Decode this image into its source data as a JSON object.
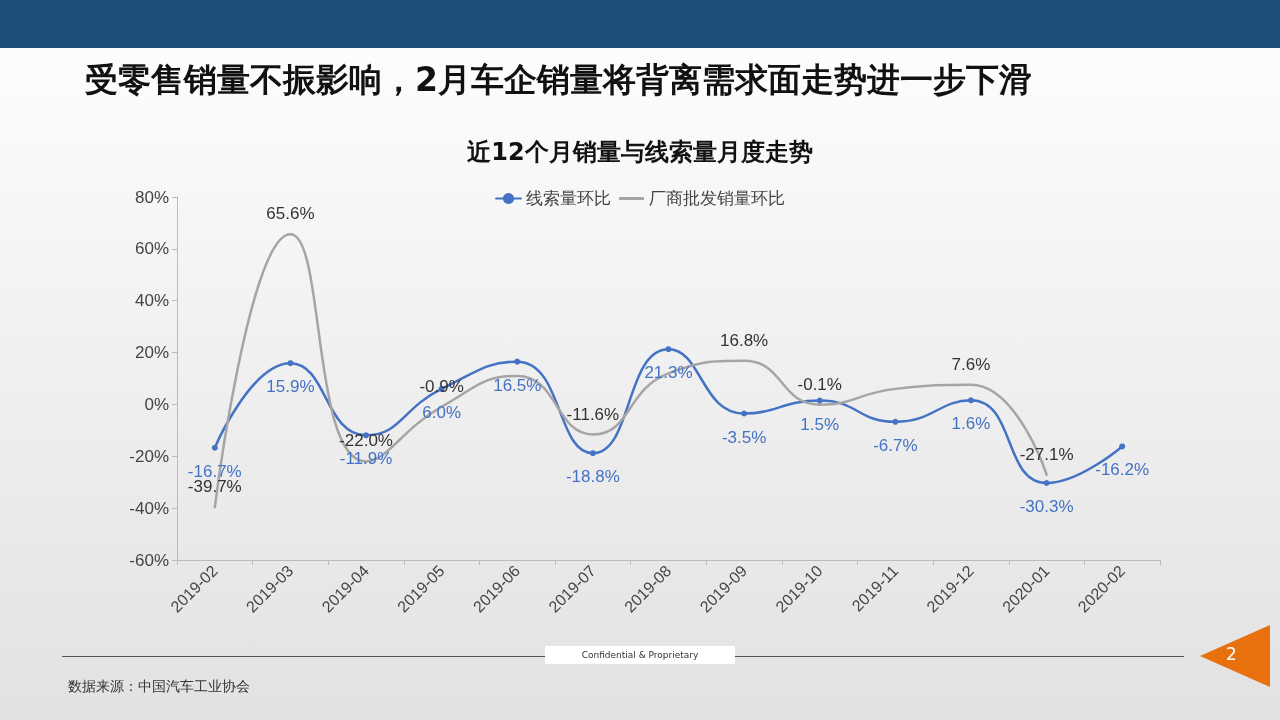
{
  "chart_data": {
    "type": "line",
    "title": "受零售销量不振影响，2月车企销量将背离需求面走势进一步下滑",
    "subtitle": "近12个月销量与线索量月度走势",
    "categories": [
      "2019-02",
      "2019-03",
      "2019-04",
      "2019-05",
      "2019-06",
      "2019-07",
      "2019-08",
      "2019-09",
      "2019-10",
      "2019-11",
      "2019-12",
      "2020-01",
      "2020-02"
    ],
    "series": [
      {
        "name": "线索量环比",
        "color": "#4472c4",
        "marker": "circle",
        "values": [
          -16.7,
          15.9,
          -11.9,
          6.0,
          16.5,
          -18.8,
          21.3,
          -3.5,
          1.5,
          -6.7,
          1.6,
          -30.3,
          -16.2
        ],
        "value_labels": [
          "-16.7%",
          "15.9%",
          "-11.9%",
          "6.0%",
          "16.5%",
          "-18.8%",
          "21.3%",
          "-3.5%",
          "1.5%",
          "-6.7%",
          "1.6%",
          "-30.3%",
          "-16.2%"
        ]
      },
      {
        "name": "厂商批发销量环比",
        "color": "#a5a5a5",
        "marker": "none",
        "values": [
          -39.7,
          65.6,
          -22.0,
          -0.9,
          11,
          -11.6,
          12,
          16.8,
          -0.1,
          6,
          7.6,
          -27.1,
          null
        ],
        "value_labels": [
          "-39.7%",
          "65.6%",
          "-22.0%",
          "-0.9%",
          null,
          "-11.6%",
          null,
          "16.8%",
          "-0.1%",
          null,
          "7.6%",
          "-27.1%",
          null
        ]
      }
    ],
    "ylim": [
      -60,
      80
    ],
    "yticks": [
      {
        "value": -60,
        "label": "-60%"
      },
      {
        "value": -40,
        "label": "-40%"
      },
      {
        "value": -20,
        "label": "-20%"
      },
      {
        "value": 0,
        "label": "0%"
      },
      {
        "value": 20,
        "label": "20%"
      },
      {
        "value": 40,
        "label": "40%"
      },
      {
        "value": 60,
        "label": "60%"
      },
      {
        "value": 80,
        "label": "80%"
      }
    ],
    "grid": false,
    "legend": "top",
    "line_style": "solid",
    "annotations": [
      "Confidential & Proprietary",
      "数据来源：中国汽车工业协会",
      "2"
    ]
  }
}
